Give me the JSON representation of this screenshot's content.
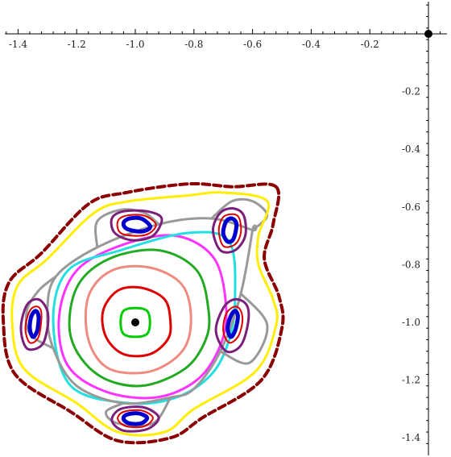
{
  "chart_data": {
    "type": "line",
    "title": "",
    "xlabel": "",
    "ylabel": "",
    "xlim": [
      -1.4,
      0.04
    ],
    "ylim": [
      -1.45,
      0.1
    ],
    "grid": false,
    "x_ticks": [
      -1.4,
      -1.2,
      -1.0,
      -0.8,
      -0.6,
      -0.4,
      -0.2
    ],
    "x_tick_labels": [
      "-1.4",
      "-1.2",
      "-1.0",
      "-0.8",
      "-0.6",
      "-0.4",
      "-0.2"
    ],
    "y_ticks": [
      -0.2,
      -0.4,
      -0.6,
      -0.8,
      -1.0,
      -1.2,
      -1.4
    ],
    "y_tick_labels": [
      "-0.2",
      "-0.4",
      "-0.6",
      "-0.8",
      "-1.0",
      "-1.2",
      "-1.4"
    ],
    "points": [
      {
        "x": 0.0,
        "y": 0.0,
        "color": "#000000"
      },
      {
        "x": -1.0,
        "y": -1.0,
        "color": "#000000"
      }
    ],
    "series": [
      {
        "color": "#00cc00",
        "width": 3,
        "dash": "",
        "points": [
          [
            -0.95,
            -1.0
          ],
          [
            -0.96,
            -0.96
          ],
          [
            -1.0,
            -0.95
          ],
          [
            -1.04,
            -0.96
          ],
          [
            -1.05,
            -1.0
          ],
          [
            -1.04,
            -1.04
          ],
          [
            -1.0,
            -1.05
          ],
          [
            -0.96,
            -1.04
          ]
        ]
      },
      {
        "color": "#dd0000",
        "width": 3,
        "dash": "",
        "points": [
          [
            -0.88,
            -1.0
          ],
          [
            -0.9,
            -0.92
          ],
          [
            -0.98,
            -0.88
          ],
          [
            -1.06,
            -0.89
          ],
          [
            -1.11,
            -0.96
          ],
          [
            -1.1,
            -1.05
          ],
          [
            -1.04,
            -1.11
          ],
          [
            -0.95,
            -1.11
          ],
          [
            -0.89,
            -1.06
          ]
        ]
      },
      {
        "color": "#f08a80",
        "width": 3,
        "dash": "",
        "points": [
          [
            -0.81,
            -0.99
          ],
          [
            -0.84,
            -0.87
          ],
          [
            -0.95,
            -0.81
          ],
          [
            -1.08,
            -0.82
          ],
          [
            -1.16,
            -0.91
          ],
          [
            -1.16,
            -1.06
          ],
          [
            -1.09,
            -1.16
          ],
          [
            -0.95,
            -1.17
          ],
          [
            -0.84,
            -1.1
          ]
        ]
      },
      {
        "color": "#22aa22",
        "width": 3,
        "dash": "",
        "points": [
          [
            -0.75,
            -0.96
          ],
          [
            -0.79,
            -0.82
          ],
          [
            -0.92,
            -0.75
          ],
          [
            -1.09,
            -0.78
          ],
          [
            -1.2,
            -0.88
          ],
          [
            -1.22,
            -1.05
          ],
          [
            -1.13,
            -1.18
          ],
          [
            -0.98,
            -1.22
          ],
          [
            -0.83,
            -1.16
          ],
          [
            -0.76,
            -1.06
          ]
        ]
      },
      {
        "color": "#ff33ff",
        "width": 3,
        "dash": "",
        "points": [
          [
            -0.69,
            -0.95
          ],
          [
            -0.73,
            -0.78
          ],
          [
            -0.86,
            -0.7
          ],
          [
            -1.04,
            -0.73
          ],
          [
            -1.2,
            -0.82
          ],
          [
            -1.26,
            -0.98
          ],
          [
            -1.23,
            -1.15
          ],
          [
            -1.1,
            -1.24
          ],
          [
            -0.93,
            -1.26
          ],
          [
            -0.79,
            -1.2
          ],
          [
            -0.71,
            -1.08
          ]
        ]
      },
      {
        "color": "#22e0e0",
        "width": 3,
        "dash": "",
        "points": [
          [
            -0.66,
            -0.92
          ],
          [
            -0.68,
            -0.72
          ],
          [
            -0.82,
            -0.69
          ],
          [
            -1.05,
            -0.75
          ],
          [
            -1.23,
            -0.82
          ],
          [
            -1.28,
            -1.0
          ],
          [
            -1.22,
            -1.22
          ],
          [
            -1.02,
            -1.28
          ],
          [
            -0.86,
            -1.26
          ],
          [
            -0.74,
            -1.18
          ],
          [
            -0.68,
            -1.06
          ]
        ]
      },
      {
        "color": "#999999",
        "width": 3,
        "dash": "",
        "points": [
          [
            -0.6,
            -0.68
          ],
          [
            -0.64,
            -0.9
          ],
          [
            -0.71,
            -1.1
          ],
          [
            -0.8,
            -1.23
          ],
          [
            -0.88,
            -1.26
          ],
          [
            -1.04,
            -1.28
          ],
          [
            -1.2,
            -1.22
          ],
          [
            -1.28,
            -1.09
          ],
          [
            -1.3,
            -0.96
          ],
          [
            -1.27,
            -0.84
          ],
          [
            -1.13,
            -0.74
          ],
          [
            -0.92,
            -0.66
          ],
          [
            -0.74,
            -0.64
          ],
          [
            -0.6,
            -0.68
          ]
        ]
      },
      {
        "color": "#999999",
        "width": 3,
        "dash": "",
        "points": [
          [
            -0.64,
            -0.9
          ],
          [
            -0.55,
            -1.01
          ],
          [
            -0.61,
            -1.14
          ],
          [
            -0.71,
            -1.1
          ]
        ]
      },
      {
        "color": "#999999",
        "width": 3,
        "dash": "",
        "points": [
          [
            -0.88,
            -1.26
          ],
          [
            -0.94,
            -1.35
          ],
          [
            -1.06,
            -1.35
          ],
          [
            -1.1,
            -1.31
          ],
          [
            -1.04,
            -1.28
          ]
        ]
      },
      {
        "color": "#999999",
        "width": 3,
        "dash": "",
        "points": [
          [
            -1.28,
            -1.09
          ],
          [
            -1.36,
            -1.04
          ],
          [
            -1.37,
            -0.96
          ],
          [
            -1.33,
            -0.89
          ],
          [
            -1.27,
            -0.84
          ]
        ]
      },
      {
        "color": "#999999",
        "width": 3,
        "dash": "",
        "points": [
          [
            -1.13,
            -0.74
          ],
          [
            -1.13,
            -0.65
          ],
          [
            -1.05,
            -0.61
          ],
          [
            -0.97,
            -0.62
          ],
          [
            -0.92,
            -0.66
          ]
        ]
      },
      {
        "color": "#999999",
        "width": 3,
        "dash": "",
        "points": [
          [
            -0.74,
            -0.64
          ],
          [
            -0.67,
            -0.58
          ],
          [
            -0.6,
            -0.58
          ],
          [
            -0.55,
            -0.63
          ],
          [
            -0.6,
            -0.68
          ]
        ]
      },
      {
        "color": "#0000cc",
        "width": 5,
        "dash": "",
        "points": [
          [
            -0.95,
            -0.665
          ],
          [
            -0.98,
            -0.64
          ],
          [
            -1.02,
            -0.64
          ],
          [
            -1.04,
            -0.655
          ],
          [
            -1.03,
            -0.675
          ],
          [
            -0.99,
            -0.685
          ],
          [
            -0.96,
            -0.68
          ]
        ]
      },
      {
        "color": "#dd0000",
        "width": 2,
        "dash": "",
        "points": [
          [
            -0.93,
            -0.66
          ],
          [
            -0.97,
            -0.63
          ],
          [
            -1.03,
            -0.63
          ],
          [
            -1.06,
            -0.65
          ],
          [
            -1.05,
            -0.69
          ],
          [
            -0.99,
            -0.7
          ],
          [
            -0.95,
            -0.69
          ]
        ]
      },
      {
        "color": "#7a1f7a",
        "width": 3,
        "dash": "",
        "points": [
          [
            -0.91,
            -0.64
          ],
          [
            -0.96,
            -0.615
          ],
          [
            -1.04,
            -0.615
          ],
          [
            -1.08,
            -0.64
          ],
          [
            -1.07,
            -0.69
          ],
          [
            -1.01,
            -0.715
          ],
          [
            -0.94,
            -0.7
          ]
        ]
      },
      {
        "color": "#0000cc",
        "width": 5,
        "dash": "",
        "points": [
          [
            -0.655,
            -0.66
          ],
          [
            -0.67,
            -0.64
          ],
          [
            -0.69,
            -0.65
          ],
          [
            -0.7,
            -0.69
          ],
          [
            -0.685,
            -0.72
          ],
          [
            -0.665,
            -0.71
          ]
        ]
      },
      {
        "color": "#dd0000",
        "width": 2,
        "dash": "",
        "points": [
          [
            -0.645,
            -0.64
          ],
          [
            -0.665,
            -0.625
          ],
          [
            -0.7,
            -0.635
          ],
          [
            -0.715,
            -0.68
          ],
          [
            -0.7,
            -0.735
          ],
          [
            -0.66,
            -0.73
          ],
          [
            -0.64,
            -0.69
          ]
        ]
      },
      {
        "color": "#7a1f7a",
        "width": 3,
        "dash": "",
        "points": [
          [
            -0.63,
            -0.63
          ],
          [
            -0.665,
            -0.605
          ],
          [
            -0.71,
            -0.62
          ],
          [
            -0.735,
            -0.68
          ],
          [
            -0.71,
            -0.75
          ],
          [
            -0.66,
            -0.75
          ],
          [
            -0.625,
            -0.7
          ]
        ]
      },
      {
        "color": "#0000cc",
        "width": 5,
        "dash": "",
        "points": [
          [
            -0.65,
            -0.98
          ],
          [
            -0.66,
            -0.96
          ],
          [
            -0.675,
            -0.98
          ],
          [
            -0.685,
            -1.02
          ],
          [
            -0.675,
            -1.05
          ],
          [
            -0.66,
            -1.03
          ]
        ]
      },
      {
        "color": "#dd0000",
        "width": 2,
        "dash": "",
        "points": [
          [
            -0.64,
            -0.96
          ],
          [
            -0.66,
            -0.945
          ],
          [
            -0.69,
            -0.97
          ],
          [
            -0.7,
            -1.03
          ],
          [
            -0.68,
            -1.07
          ],
          [
            -0.65,
            -1.05
          ],
          [
            -0.635,
            -1.0
          ]
        ]
      },
      {
        "color": "#7a1f7a",
        "width": 3,
        "dash": "",
        "points": [
          [
            -0.62,
            -0.94
          ],
          [
            -0.66,
            -0.92
          ],
          [
            -0.7,
            -0.95
          ],
          [
            -0.725,
            -1.03
          ],
          [
            -0.69,
            -1.1
          ],
          [
            -0.64,
            -1.08
          ],
          [
            -0.615,
            -1.0
          ]
        ]
      },
      {
        "color": "#0000cc",
        "width": 5,
        "dash": "",
        "points": [
          [
            -0.96,
            -1.33
          ],
          [
            -0.99,
            -1.315
          ],
          [
            -1.03,
            -1.32
          ],
          [
            -1.04,
            -1.335
          ],
          [
            -1.02,
            -1.35
          ],
          [
            -0.98,
            -1.35
          ]
        ]
      },
      {
        "color": "#dd0000",
        "width": 2,
        "dash": "",
        "points": [
          [
            -0.94,
            -1.33
          ],
          [
            -0.98,
            -1.305
          ],
          [
            -1.04,
            -1.31
          ],
          [
            -1.06,
            -1.335
          ],
          [
            -1.03,
            -1.36
          ],
          [
            -0.97,
            -1.36
          ]
        ]
      },
      {
        "color": "#7a1f7a",
        "width": 3,
        "dash": "",
        "points": [
          [
            -0.92,
            -1.33
          ],
          [
            -0.97,
            -1.295
          ],
          [
            -1.05,
            -1.3
          ],
          [
            -1.08,
            -1.34
          ],
          [
            -1.04,
            -1.375
          ],
          [
            -0.96,
            -1.37
          ]
        ]
      },
      {
        "color": "#0000cc",
        "width": 5,
        "dash": "",
        "points": [
          [
            -1.33,
            -0.98
          ],
          [
            -1.34,
            -0.96
          ],
          [
            -1.355,
            -0.98
          ],
          [
            -1.36,
            -1.02
          ],
          [
            -1.35,
            -1.05
          ],
          [
            -1.335,
            -1.03
          ]
        ]
      },
      {
        "color": "#dd0000",
        "width": 2,
        "dash": "",
        "points": [
          [
            -1.32,
            -0.97
          ],
          [
            -1.335,
            -0.945
          ],
          [
            -1.36,
            -0.96
          ],
          [
            -1.375,
            -1.02
          ],
          [
            -1.36,
            -1.07
          ],
          [
            -1.33,
            -1.05
          ]
        ]
      },
      {
        "color": "#7a1f7a",
        "width": 3,
        "dash": "",
        "points": [
          [
            -1.3,
            -0.96
          ],
          [
            -1.33,
            -0.92
          ],
          [
            -1.37,
            -0.94
          ],
          [
            -1.39,
            -1.02
          ],
          [
            -1.37,
            -1.09
          ],
          [
            -1.32,
            -1.08
          ],
          [
            -1.3,
            -1.02
          ]
        ]
      },
      {
        "color": "#ffee00",
        "width": 3,
        "dash": "",
        "points": [
          [
            -0.55,
            -0.58
          ],
          [
            -0.58,
            -0.7
          ],
          [
            -0.58,
            -0.8
          ],
          [
            -0.53,
            -0.92
          ],
          [
            -0.52,
            -1.01
          ],
          [
            -0.59,
            -1.17
          ],
          [
            -0.8,
            -1.3
          ],
          [
            -0.9,
            -1.38
          ],
          [
            -1.06,
            -1.38
          ],
          [
            -1.2,
            -1.28
          ],
          [
            -1.38,
            -1.16
          ],
          [
            -1.42,
            -1.0
          ],
          [
            -1.4,
            -0.87
          ],
          [
            -1.3,
            -0.78
          ],
          [
            -1.14,
            -0.62
          ],
          [
            -1.02,
            -0.58
          ],
          [
            -0.82,
            -0.56
          ],
          [
            -0.7,
            -0.55
          ]
        ]
      },
      {
        "color": "#8b0000",
        "width": 4,
        "dash": "9,5",
        "points": [
          [
            -0.52,
            -0.53
          ],
          [
            -0.53,
            -0.66
          ],
          [
            -0.56,
            -0.78
          ],
          [
            -0.51,
            -0.91
          ],
          [
            -0.5,
            -1.02
          ],
          [
            -0.57,
            -1.2
          ],
          [
            -0.77,
            -1.33
          ],
          [
            -0.88,
            -1.4
          ],
          [
            -1.06,
            -1.41
          ],
          [
            -1.22,
            -1.31
          ],
          [
            -1.41,
            -1.18
          ],
          [
            -1.45,
            -1.0
          ],
          [
            -1.43,
            -0.86
          ],
          [
            -1.32,
            -0.76
          ],
          [
            -1.16,
            -0.59
          ],
          [
            -1.03,
            -0.55
          ],
          [
            -0.82,
            -0.52
          ],
          [
            -0.67,
            -0.53
          ]
        ]
      }
    ]
  }
}
